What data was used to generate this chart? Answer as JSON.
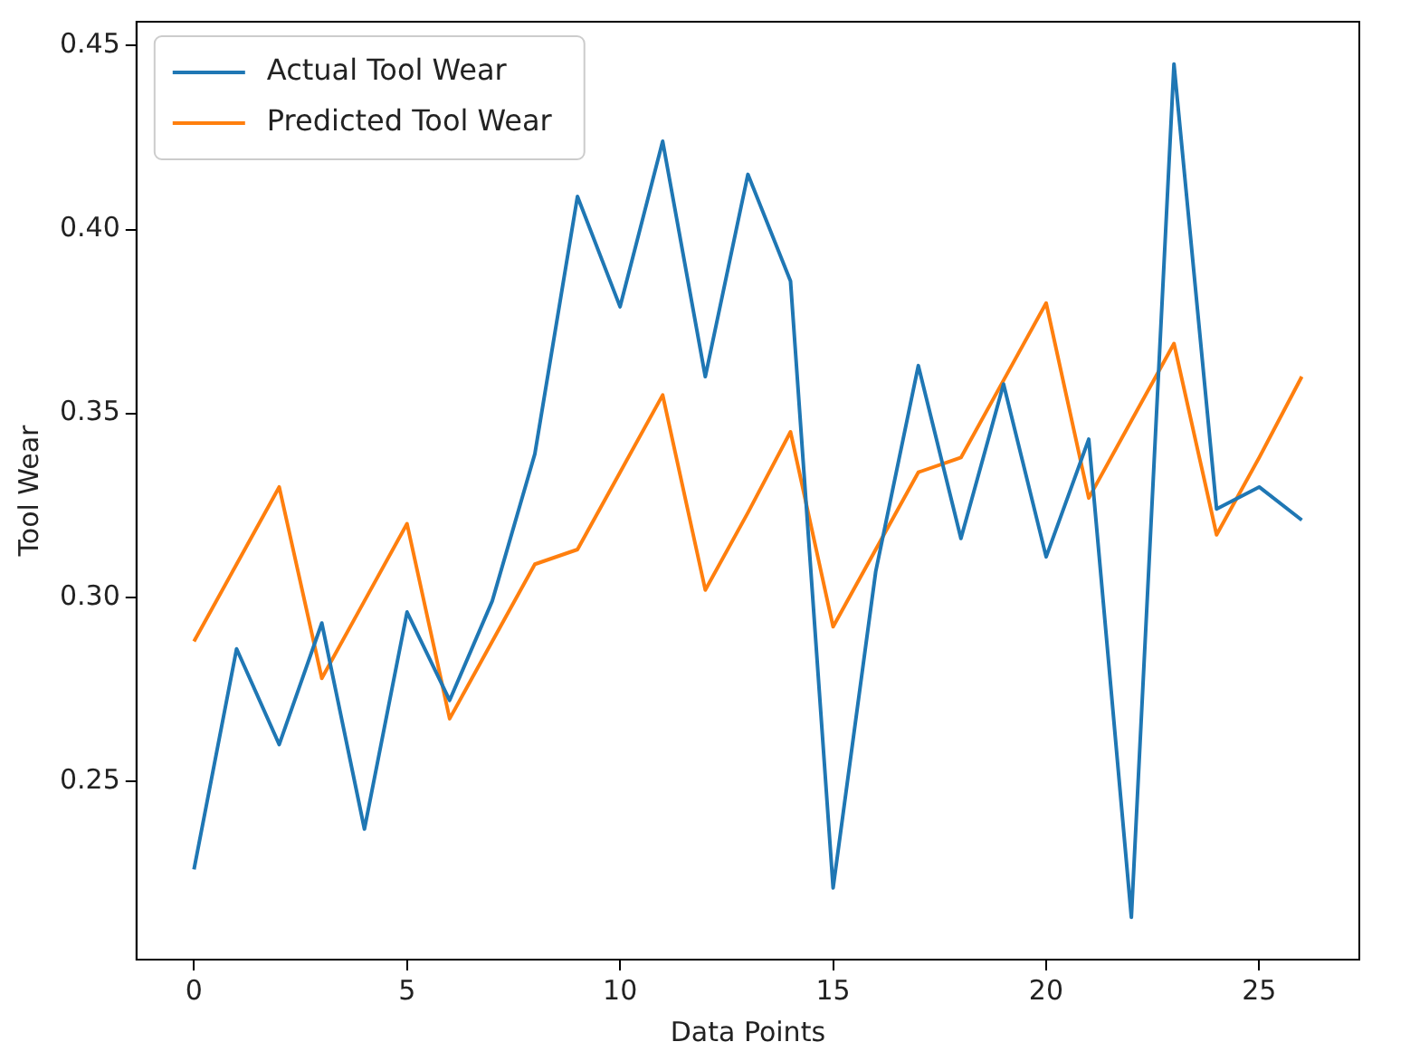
{
  "chart_data": {
    "type": "line",
    "xlabel": "Data Points",
    "ylabel": "Tool Wear",
    "x": [
      0,
      1,
      2,
      3,
      4,
      5,
      6,
      7,
      8,
      9,
      10,
      11,
      12,
      13,
      14,
      15,
      16,
      17,
      18,
      19,
      20,
      21,
      22,
      23,
      24,
      25,
      26
    ],
    "series": [
      {
        "name": "Actual Tool Wear",
        "color": "#1f77b4",
        "values": [
          0.226,
          0.286,
          0.26,
          0.293,
          0.237,
          0.296,
          0.272,
          0.299,
          0.339,
          0.409,
          0.379,
          0.424,
          0.36,
          0.415,
          0.386,
          0.221,
          0.307,
          0.363,
          0.316,
          0.358,
          0.311,
          0.343,
          0.213,
          0.445,
          0.324,
          0.33,
          0.321
        ]
      },
      {
        "name": "Predicted Tool Wear",
        "color": "#ff7f0e",
        "values": [
          0.288,
          0.309,
          0.33,
          0.278,
          0.299,
          0.32,
          0.267,
          0.288,
          0.309,
          0.313,
          0.334,
          0.355,
          0.302,
          0.323,
          0.345,
          0.292,
          0.313,
          0.334,
          0.338,
          0.359,
          0.38,
          0.327,
          0.348,
          0.369,
          0.317,
          0.338,
          0.36
        ]
      }
    ],
    "xlim": [
      -1.35,
      27.35
    ],
    "xticks": [
      0,
      5,
      10,
      15,
      20,
      25
    ],
    "ylim": [
      0.2015,
      0.4565
    ],
    "yticks": [
      {
        "value": 0.25,
        "label": "0.25"
      },
      {
        "value": 0.3,
        "label": "0.30"
      },
      {
        "value": 0.35,
        "label": "0.35"
      },
      {
        "value": 0.4,
        "label": "0.40"
      },
      {
        "value": 0.45,
        "label": "0.45"
      }
    ],
    "grid": false,
    "legend": "top left",
    "marker": "none",
    "line_style": "solid"
  }
}
